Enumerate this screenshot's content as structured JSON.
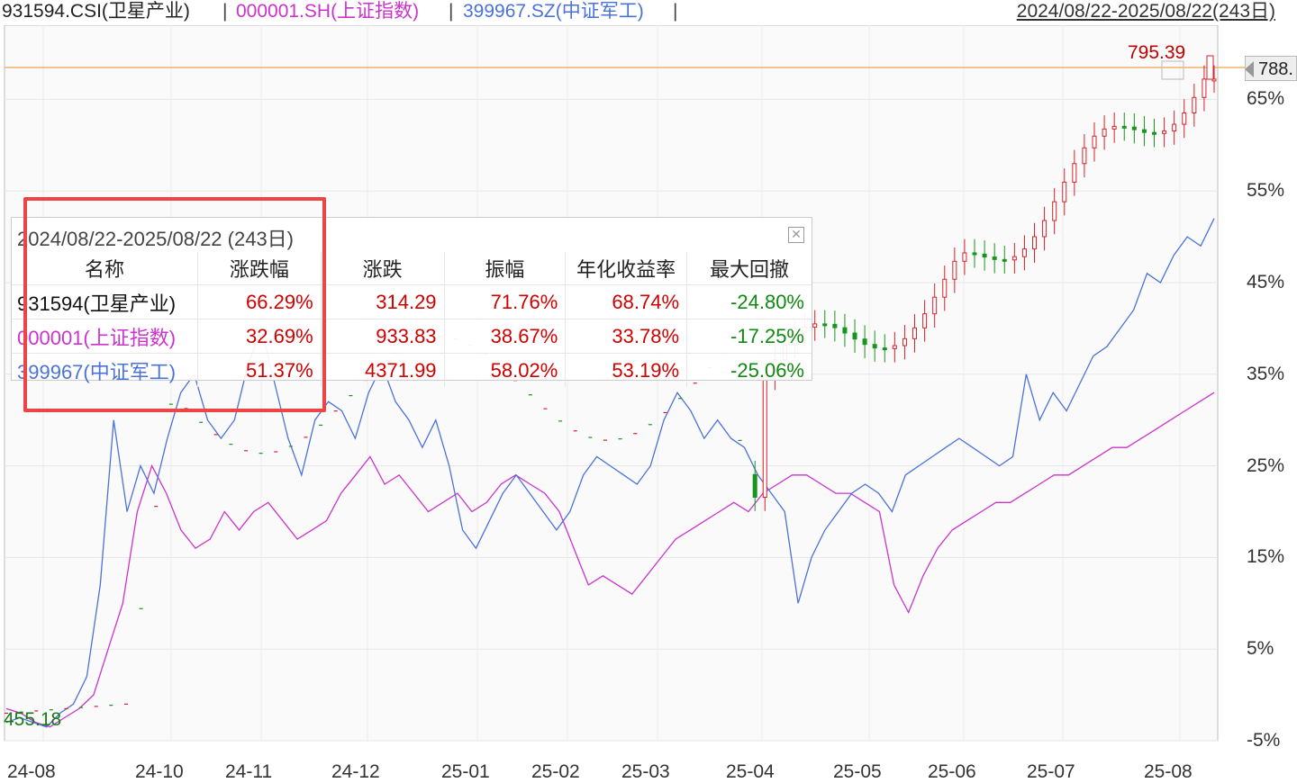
{
  "header": {
    "series1_label": "931594.CSI(卫星产业)",
    "series2_label": "000001.SH(上证指数)",
    "series3_label": "399967.SZ(中证军工)",
    "separator": "|",
    "range_label": "2024/08/22-2025/08/22(243日)"
  },
  "colors": {
    "up": "#d9202a",
    "down": "#17951d",
    "index": "#cc33cc",
    "military": "#4a72d8",
    "price_line": "#f0a34a"
  },
  "price_marker": "788.",
  "high_label": "795.39",
  "low_label": "455.18",
  "popup": {
    "title": "2024/08/22-2025/08/22 (243日)",
    "columns": [
      "名称",
      "涨跌幅",
      "涨跌",
      "振幅",
      "年化收益率",
      "最大回撤"
    ],
    "rows": [
      {
        "name": "931594(卫星产业)",
        "change_pct": "66.29%",
        "change": "314.29",
        "amplitude": "71.76%",
        "annual": "68.74%",
        "drawdown": "-24.80%",
        "color": "#111111"
      },
      {
        "name": "000001(上证指数)",
        "change_pct": "32.69%",
        "change": "933.83",
        "amplitude": "38.67%",
        "annual": "33.78%",
        "drawdown": "-17.25%",
        "color": "#cc33cc"
      },
      {
        "name": "399967(中证军工)",
        "change_pct": "51.37%",
        "change": "4371.99",
        "amplitude": "58.02%",
        "annual": "53.19%",
        "drawdown": "-25.06%",
        "color": "#4a72d8"
      }
    ]
  },
  "chart_data": {
    "type": "line",
    "y_ticks": [
      "65%",
      "55%",
      "45%",
      "35%",
      "25%",
      "15%",
      "5%",
      "-5%"
    ],
    "y_tick_values": [
      65,
      55,
      45,
      35,
      25,
      15,
      5,
      -5
    ],
    "x_ticks": [
      "24-08",
      "24-10",
      "24-11",
      "24-12",
      "25-01",
      "25-02",
      "25-03",
      "25-04",
      "25-05",
      "25-06",
      "25-07",
      "25-08"
    ],
    "candlestick_series": "931594.CSI(卫星产业)",
    "series": [
      {
        "name": "000001.SH(上证指数)",
        "values": [
          -1.5,
          -2,
          -3,
          -3.5,
          -2.5,
          -1.5,
          0,
          5,
          10,
          20,
          25,
          22,
          18,
          16,
          17,
          20,
          18,
          20,
          21,
          19,
          17,
          18,
          19,
          22,
          24,
          26,
          23,
          24,
          22,
          20,
          21,
          22,
          20,
          21,
          23,
          24,
          23,
          22,
          20,
          16,
          12,
          13,
          12,
          11,
          13,
          15,
          17,
          18,
          19,
          20,
          21,
          20,
          22,
          23,
          24,
          24,
          23,
          22,
          22,
          21,
          20,
          12,
          9,
          13,
          16,
          18,
          19,
          20,
          21,
          21,
          22,
          23,
          24,
          24,
          25,
          26,
          27,
          27,
          28,
          29,
          30,
          31,
          32,
          33
        ]
      },
      {
        "name": "399967.SZ(中证军工)",
        "values": [
          -3,
          -2.5,
          -3,
          -3.5,
          -2,
          -1,
          2,
          12,
          30,
          20,
          25,
          22,
          28,
          33,
          35,
          30,
          28,
          30,
          36,
          40,
          34,
          28,
          24,
          30,
          32,
          31,
          28,
          33,
          36,
          32,
          30,
          27,
          30,
          25,
          18,
          16,
          19,
          22,
          24,
          22,
          20,
          18,
          20,
          24,
          26,
          25,
          24,
          23,
          25,
          30,
          33,
          31,
          28,
          30,
          28,
          27,
          24,
          22,
          20,
          10,
          15,
          18,
          20,
          22,
          23,
          22,
          20,
          24,
          25,
          26,
          27,
          28,
          27,
          26,
          25,
          26,
          35,
          30,
          33,
          31,
          34,
          37,
          38,
          40,
          42,
          46,
          45,
          48,
          50,
          49,
          52
        ]
      }
    ]
  }
}
